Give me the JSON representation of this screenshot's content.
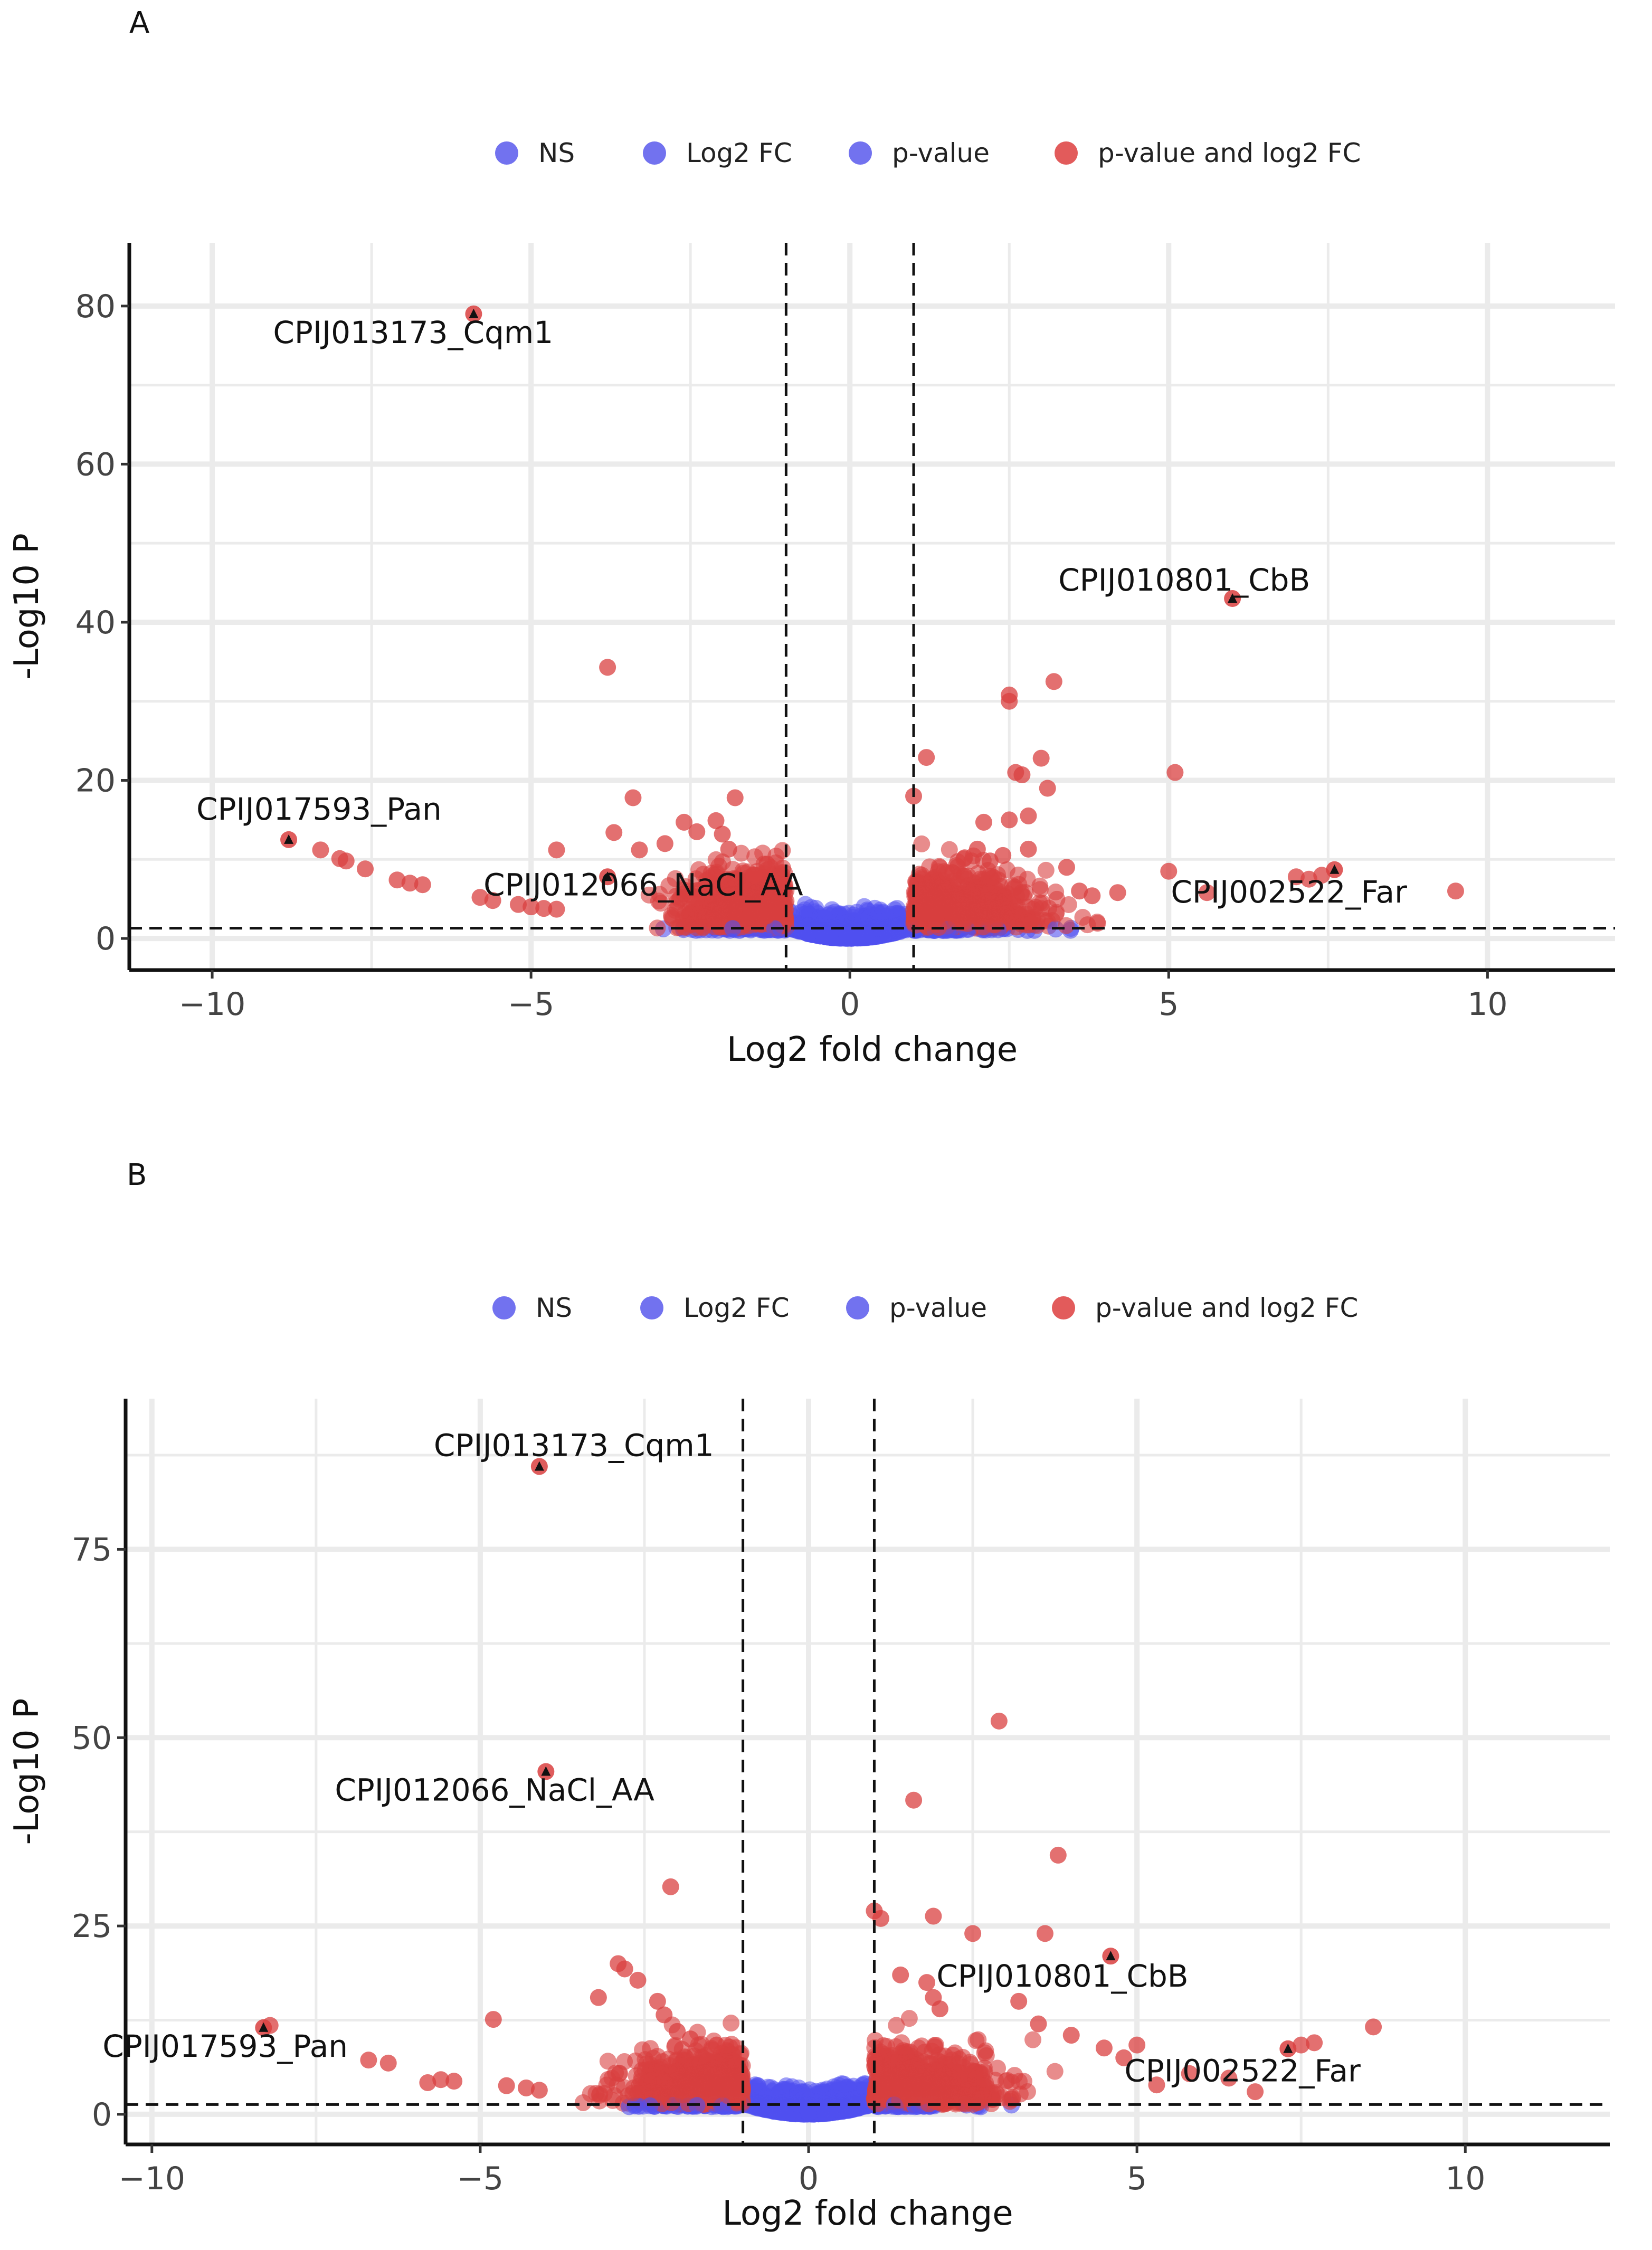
{
  "chart_data": [
    {
      "panel": "A",
      "type": "scatter",
      "title": "",
      "xlabel": "Log2 fold change",
      "ylabel": "-Log10 P",
      "xlim": [
        -11.3,
        12
      ],
      "ylim": [
        -4,
        88
      ],
      "xticks": [
        -10,
        -5,
        0,
        5,
        10
      ],
      "xtick_labels": [
        "−10",
        "−5",
        "0",
        "5",
        "10"
      ],
      "yticks": [
        0,
        20,
        40,
        60,
        80
      ],
      "ytick_labels": [
        "0",
        "20",
        "40",
        "60",
        "80"
      ],
      "fc_cutoff": 1,
      "p_cutoff": 1.3,
      "legend": {
        "position": "top",
        "items": [
          {
            "label": "NS",
            "color": "#6a6aee"
          },
          {
            "label": "Log2 FC",
            "color": "#6a6aee"
          },
          {
            "label": "p-value",
            "color": "#6a6aee"
          },
          {
            "label": "p-value and log2 FC",
            "color": "#e05252"
          }
        ]
      },
      "labeled_genes": [
        {
          "label": "CPIJ013173_Cqm1",
          "x": -5.9,
          "y": 79
        },
        {
          "label": "CPIJ010801_CbB",
          "x": 6.0,
          "y": 43
        },
        {
          "label": "CPIJ017593_Pan",
          "x": -8.8,
          "y": 12.5
        },
        {
          "label": "CPIJ012066_NaCl_AA",
          "x": -3.8,
          "y": 7.8
        },
        {
          "label": "CPIJ002522_Far",
          "x": 7.6,
          "y": 8.7
        }
      ],
      "sig_points": [
        [
          -8.3,
          11.2
        ],
        [
          -8.0,
          10.1
        ],
        [
          -7.9,
          9.8
        ],
        [
          -7.6,
          8.8
        ],
        [
          -7.1,
          7.4
        ],
        [
          -6.9,
          7.0
        ],
        [
          -6.7,
          6.8
        ],
        [
          -5.8,
          5.2
        ],
        [
          -5.6,
          4.8
        ],
        [
          -5.2,
          4.3
        ],
        [
          -5.0,
          4.0
        ],
        [
          -4.8,
          3.8
        ],
        [
          -4.6,
          3.7
        ],
        [
          -4.6,
          11.2
        ],
        [
          -3.8,
          34.3
        ],
        [
          -3.7,
          13.4
        ],
        [
          -3.4,
          17.8
        ],
        [
          -3.3,
          11.2
        ],
        [
          -2.9,
          12.0
        ],
        [
          -2.6,
          14.7
        ],
        [
          -2.4,
          13.5
        ],
        [
          -2.1,
          14.9
        ],
        [
          -2.0,
          13.2
        ],
        [
          -1.9,
          11.3
        ],
        [
          -1.8,
          17.8
        ],
        [
          -1.5,
          8.0
        ],
        [
          -1.3,
          9.4
        ],
        [
          1.0,
          18.0
        ],
        [
          1.2,
          22.9
        ],
        [
          1.8,
          10.2
        ],
        [
          2.0,
          11.3
        ],
        [
          2.1,
          14.7
        ],
        [
          2.2,
          9.8
        ],
        [
          2.4,
          10.5
        ],
        [
          2.5,
          15.0
        ],
        [
          2.5,
          30.0
        ],
        [
          2.5,
          30.8
        ],
        [
          2.6,
          21.0
        ],
        [
          2.7,
          20.7
        ],
        [
          2.8,
          11.3
        ],
        [
          2.8,
          15.5
        ],
        [
          3.0,
          22.8
        ],
        [
          3.1,
          19.0
        ],
        [
          3.2,
          32.5
        ],
        [
          3.4,
          9.0
        ],
        [
          3.6,
          6.0
        ],
        [
          3.8,
          5.4
        ],
        [
          4.2,
          5.8
        ],
        [
          5.0,
          8.5
        ],
        [
          5.1,
          21.0
        ],
        [
          5.6,
          5.8
        ],
        [
          7.0,
          7.8
        ],
        [
          7.2,
          7.5
        ],
        [
          7.4,
          8.0
        ],
        [
          9.5,
          6.0
        ]
      ]
    },
    {
      "panel": "B",
      "type": "scatter",
      "title": "",
      "xlabel": "Log2 fold change",
      "ylabel": "-Log10 P",
      "xlim": [
        -10.4,
        12.2
      ],
      "ylim": [
        -4,
        95
      ],
      "xticks": [
        -10,
        -5,
        0,
        5,
        10
      ],
      "xtick_labels": [
        "−10",
        "−5",
        "0",
        "5",
        "10"
      ],
      "yticks": [
        0,
        25,
        50,
        75
      ],
      "ytick_labels": [
        "0",
        "25",
        "50",
        "75"
      ],
      "fc_cutoff": 1,
      "p_cutoff": 1.3,
      "legend": {
        "position": "top",
        "items": [
          {
            "label": "NS",
            "color": "#6a6aee"
          },
          {
            "label": "Log2 FC",
            "color": "#6a6aee"
          },
          {
            "label": "p-value",
            "color": "#6a6aee"
          },
          {
            "label": "p-value and log2 FC",
            "color": "#e05252"
          }
        ]
      },
      "labeled_genes": [
        {
          "label": "CPIJ013173_Cqm1",
          "x": -4.1,
          "y": 86
        },
        {
          "label": "CPIJ012066_NaCl_AA",
          "x": -4.0,
          "y": 45.5
        },
        {
          "label": "CPIJ010801_CbB",
          "x": 4.6,
          "y": 21
        },
        {
          "label": "CPIJ017593_Pan",
          "x": -8.3,
          "y": 11.5
        },
        {
          "label": "CPIJ002522_Far",
          "x": 7.3,
          "y": 8.7
        }
      ],
      "sig_points": [
        [
          -8.2,
          11.8
        ],
        [
          -6.7,
          7.2
        ],
        [
          -6.4,
          6.8
        ],
        [
          -5.8,
          4.2
        ],
        [
          -5.6,
          4.6
        ],
        [
          -5.4,
          4.4
        ],
        [
          -4.8,
          12.6
        ],
        [
          -4.6,
          3.8
        ],
        [
          -4.3,
          3.5
        ],
        [
          -4.1,
          3.2
        ],
        [
          -2.9,
          20.0
        ],
        [
          -2.8,
          19.3
        ],
        [
          -2.6,
          17.8
        ],
        [
          -3.2,
          15.5
        ],
        [
          -2.3,
          15.0
        ],
        [
          -2.2,
          13.2
        ],
        [
          -2.1,
          30.2
        ],
        [
          -2.0,
          11.0
        ],
        [
          -1.8,
          10.0
        ],
        [
          -1.4,
          9.2
        ],
        [
          1.0,
          27.0
        ],
        [
          1.1,
          26.0
        ],
        [
          1.4,
          18.5
        ],
        [
          1.6,
          41.7
        ],
        [
          1.8,
          17.5
        ],
        [
          1.9,
          15.5
        ],
        [
          1.9,
          26.3
        ],
        [
          2.0,
          14.0
        ],
        [
          2.5,
          24.0
        ],
        [
          2.9,
          52.2
        ],
        [
          3.2,
          15.0
        ],
        [
          3.5,
          12.0
        ],
        [
          3.6,
          24.0
        ],
        [
          3.8,
          34.4
        ],
        [
          4.0,
          10.5
        ],
        [
          4.5,
          8.8
        ],
        [
          4.8,
          7.5
        ],
        [
          5.0,
          9.2
        ],
        [
          5.3,
          3.9
        ],
        [
          5.8,
          5.4
        ],
        [
          6.4,
          4.8
        ],
        [
          6.8,
          3.0
        ],
        [
          7.5,
          9.2
        ],
        [
          7.7,
          9.5
        ],
        [
          8.6,
          11.6
        ]
      ]
    }
  ]
}
